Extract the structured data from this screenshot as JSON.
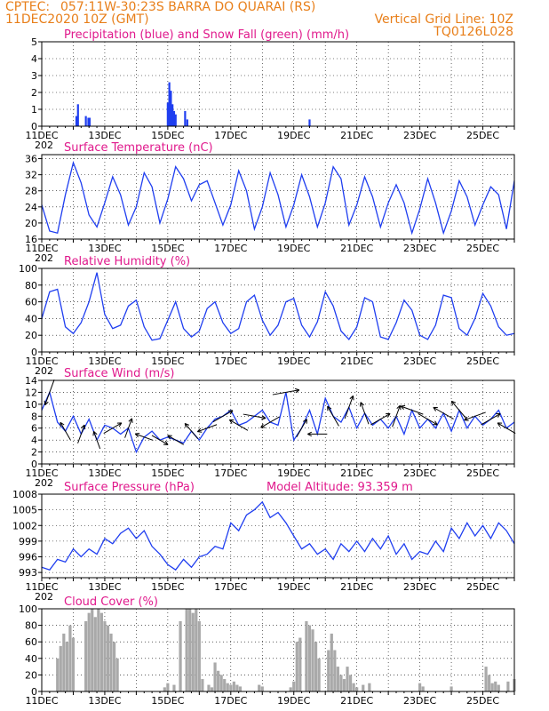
{
  "header": {
    "line1_left": "CPTEC:",
    "location": "057:11W-30:23S  BARRA DO QUARAI (RS)",
    "run_time": "11DEC2020 10Z (GMT)",
    "grid_note": "Vertical Grid Line: 10Z",
    "model_code": "TQ0126L028"
  },
  "x_axis": {
    "tick_labels": [
      "11DEC",
      "13DEC",
      "15DEC",
      "17DEC",
      "19DEC",
      "21DEC",
      "23DEC",
      "25DEC"
    ],
    "tick_days": [
      0,
      2,
      4,
      6,
      8,
      10,
      12,
      14
    ],
    "year_stub": "202",
    "range_days": [
      0,
      15
    ]
  },
  "colors": {
    "header": "#e87f1a",
    "title": "#e0198c",
    "line": "#1f3ef0",
    "precip_bar": "#1f3ef0",
    "snow_bar": "#18a018",
    "cloud_bar": "#a9a9a9",
    "arrow": "#000000"
  },
  "chart_data": [
    {
      "id": "precip",
      "type": "bar",
      "title": "Precipitation (blue) and Snow Fall (green) (mm/h)",
      "ylim": [
        0,
        5
      ],
      "y_ticks": [
        0,
        1,
        2,
        3,
        4,
        5
      ],
      "grid": true,
      "series": [
        {
          "name": "Precipitation",
          "x": [
            1.1,
            1.15,
            1.4,
            1.48,
            1.52,
            4.0,
            4.05,
            4.1,
            4.15,
            4.2,
            4.25,
            4.55,
            4.62,
            8.5
          ],
          "values": [
            0.6,
            1.3,
            0.6,
            0.5,
            0.5,
            1.4,
            2.6,
            2.1,
            1.3,
            0.9,
            0.7,
            0.9,
            0.4,
            0.4
          ]
        },
        {
          "name": "Snow Fall",
          "x": [],
          "values": []
        }
      ]
    },
    {
      "id": "temperature",
      "type": "line",
      "title": "Surface Temperature (nC)",
      "ylim": [
        16,
        37
      ],
      "y_ticks": [
        16,
        20,
        24,
        28,
        32,
        36
      ],
      "grid": true,
      "series": [
        {
          "name": "Surface Temperature",
          "x": [
            0.0,
            0.25,
            0.5,
            0.75,
            1.0,
            1.25,
            1.5,
            1.75,
            2.0,
            2.25,
            2.5,
            2.75,
            3.0,
            3.25,
            3.5,
            3.75,
            4.0,
            4.25,
            4.5,
            4.75,
            5.0,
            5.25,
            5.5,
            5.75,
            6.0,
            6.25,
            6.5,
            6.75,
            7.0,
            7.25,
            7.5,
            7.75,
            8.0,
            8.25,
            8.5,
            8.75,
            9.0,
            9.25,
            9.5,
            9.75,
            10.0,
            10.25,
            10.5,
            10.75,
            11.0,
            11.25,
            11.5,
            11.75,
            12.0,
            12.25,
            12.5,
            12.75,
            13.0,
            13.25,
            13.5,
            13.75,
            14.0,
            14.25,
            14.5,
            14.75,
            15.0
          ],
          "values": [
            24.5,
            18.0,
            17.5,
            27.0,
            35.0,
            30.0,
            22.0,
            19.0,
            25.0,
            31.5,
            27.0,
            19.5,
            24.0,
            32.5,
            29.0,
            20.0,
            26.0,
            34.0,
            31.0,
            25.5,
            29.5,
            30.5,
            25.0,
            19.5,
            24.5,
            33.0,
            28.0,
            18.5,
            24.0,
            32.5,
            27.0,
            19.0,
            24.5,
            32.0,
            26.5,
            19.0,
            25.0,
            34.0,
            31.0,
            19.5,
            24.5,
            31.5,
            26.5,
            19.0,
            25.0,
            29.5,
            25.0,
            17.5,
            23.5,
            31.0,
            25.0,
            17.5,
            23.0,
            30.5,
            26.5,
            19.5,
            24.5,
            29.0,
            27.0,
            18.5,
            30.5
          ]
        }
      ]
    },
    {
      "id": "humidity",
      "type": "line",
      "title": "Relative Humidity (%)",
      "ylim": [
        0,
        100
      ],
      "y_ticks": [
        0,
        20,
        40,
        60,
        80,
        100
      ],
      "grid": true,
      "series": [
        {
          "name": "Relative Humidity",
          "x": [
            0.0,
            0.25,
            0.5,
            0.75,
            1.0,
            1.25,
            1.5,
            1.75,
            2.0,
            2.25,
            2.5,
            2.75,
            3.0,
            3.25,
            3.5,
            3.75,
            4.0,
            4.25,
            4.5,
            4.75,
            5.0,
            5.25,
            5.5,
            5.75,
            6.0,
            6.25,
            6.5,
            6.75,
            7.0,
            7.25,
            7.5,
            7.75,
            8.0,
            8.25,
            8.5,
            8.75,
            9.0,
            9.25,
            9.5,
            9.75,
            10.0,
            10.25,
            10.5,
            10.75,
            11.0,
            11.25,
            11.5,
            11.75,
            12.0,
            12.25,
            12.5,
            12.75,
            13.0,
            13.25,
            13.5,
            13.75,
            14.0,
            14.25,
            14.5,
            14.75,
            15.0
          ],
          "values": [
            40,
            72,
            75,
            30,
            22,
            35,
            60,
            95,
            45,
            28,
            32,
            55,
            62,
            30,
            14,
            16,
            38,
            60,
            28,
            18,
            25,
            52,
            60,
            35,
            22,
            28,
            60,
            68,
            38,
            20,
            32,
            60,
            64,
            32,
            18,
            36,
            72,
            55,
            25,
            15,
            30,
            65,
            60,
            18,
            15,
            35,
            62,
            50,
            20,
            15,
            32,
            68,
            65,
            28,
            20,
            40,
            70,
            55,
            30,
            20,
            22
          ]
        }
      ]
    },
    {
      "id": "wind",
      "type": "line",
      "title": "Surface Wind (m/s)",
      "ylim": [
        0,
        14
      ],
      "y_ticks": [
        0,
        2,
        4,
        6,
        8,
        10,
        12,
        14
      ],
      "grid": true,
      "series": [
        {
          "name": "Surface Wind Speed",
          "x": [
            0.0,
            0.25,
            0.5,
            0.75,
            1.0,
            1.25,
            1.5,
            1.75,
            2.0,
            2.25,
            2.5,
            2.75,
            3.0,
            3.25,
            3.5,
            3.75,
            4.0,
            4.25,
            4.5,
            4.75,
            5.0,
            5.25,
            5.5,
            5.75,
            6.0,
            6.25,
            6.5,
            6.75,
            7.0,
            7.25,
            7.5,
            7.75,
            8.0,
            8.25,
            8.5,
            8.75,
            9.0,
            9.25,
            9.5,
            9.75,
            10.0,
            10.25,
            10.5,
            10.75,
            11.0,
            11.25,
            11.5,
            11.75,
            12.0,
            12.25,
            12.5,
            12.75,
            13.0,
            13.25,
            13.5,
            13.75,
            14.0,
            14.25,
            14.5,
            14.75,
            15.0
          ],
          "values": [
            9.0,
            12.0,
            7.0,
            5.5,
            8.0,
            5.0,
            7.5,
            4.0,
            6.5,
            6.0,
            5.0,
            6.0,
            2.0,
            4.5,
            5.5,
            4.0,
            4.5,
            4.0,
            3.5,
            5.5,
            4.0,
            6.0,
            7.5,
            8.0,
            9.0,
            6.5,
            7.0,
            8.0,
            9.0,
            7.0,
            6.5,
            12.0,
            4.0,
            6.0,
            9.0,
            5.0,
            11.0,
            8.0,
            7.0,
            9.5,
            6.0,
            8.5,
            6.5,
            7.5,
            6.0,
            8.0,
            5.0,
            9.0,
            6.0,
            7.5,
            6.0,
            8.5,
            5.5,
            9.0,
            6.0,
            8.0,
            6.5,
            7.5,
            9.0,
            6.0,
            7.0
          ]
        },
        {
          "name": "Wind Direction",
          "x": [
            0.25,
            0.75,
            1.25,
            1.75,
            2.25,
            2.75,
            3.25,
            3.75,
            4.25,
            4.75,
            5.25,
            5.75,
            6.25,
            6.75,
            7.25,
            7.75,
            8.25,
            8.75,
            9.25,
            9.75,
            10.25,
            10.75,
            11.25,
            11.75,
            12.25,
            12.75,
            13.25,
            13.75,
            14.25,
            14.75
          ],
          "values": [
            200,
            330,
            20,
            340,
            60,
            20,
            290,
            120,
            300,
            320,
            250,
            60,
            300,
            100,
            240,
            80,
            30,
            270,
            330,
            20,
            340,
            60,
            20,
            290,
            120,
            300,
            320,
            250,
            60,
            300
          ]
        }
      ]
    },
    {
      "id": "pressure",
      "type": "line",
      "title": "Surface Pressure (hPa)",
      "annotation": "Model Altitude: 93.359 m",
      "ylim": [
        992,
        1008
      ],
      "y_ticks": [
        993,
        996,
        999,
        1002,
        1005,
        1008
      ],
      "grid": true,
      "series": [
        {
          "name": "Surface Pressure",
          "x": [
            0.0,
            0.25,
            0.5,
            0.75,
            1.0,
            1.25,
            1.5,
            1.75,
            2.0,
            2.25,
            2.5,
            2.75,
            3.0,
            3.25,
            3.5,
            3.75,
            4.0,
            4.25,
            4.5,
            4.75,
            5.0,
            5.25,
            5.5,
            5.75,
            6.0,
            6.25,
            6.5,
            6.75,
            7.0,
            7.25,
            7.5,
            7.75,
            8.0,
            8.25,
            8.5,
            8.75,
            9.0,
            9.25,
            9.5,
            9.75,
            10.0,
            10.25,
            10.5,
            10.75,
            11.0,
            11.25,
            11.5,
            11.75,
            12.0,
            12.25,
            12.5,
            12.75,
            13.0,
            13.25,
            13.5,
            13.75,
            14.0,
            14.25,
            14.5,
            14.75,
            15.0
          ],
          "values": [
            994.0,
            993.5,
            995.5,
            995.0,
            997.5,
            996.0,
            997.5,
            996.5,
            999.5,
            998.5,
            1000.5,
            1001.5,
            999.5,
            1001.0,
            998.0,
            996.5,
            994.5,
            993.5,
            995.5,
            994.0,
            996.0,
            996.5,
            998.0,
            997.5,
            1002.5,
            1001.0,
            1004.0,
            1005.0,
            1006.5,
            1003.5,
            1004.5,
            1002.5,
            1000.0,
            997.5,
            998.5,
            996.5,
            997.5,
            995.5,
            998.5,
            997.0,
            999.0,
            997.0,
            999.5,
            997.5,
            1000.0,
            996.5,
            998.5,
            995.5,
            997.0,
            996.5,
            999.0,
            997.0,
            1001.5,
            999.5,
            1002.5,
            1000.0,
            1002.0,
            999.5,
            1002.5,
            1001.0,
            998.5
          ]
        }
      ]
    },
    {
      "id": "cloud",
      "type": "bar",
      "title": "Cloud Cover (%)",
      "ylim": [
        0,
        100
      ],
      "y_ticks": [
        0,
        20,
        40,
        60,
        80,
        100
      ],
      "grid": true,
      "series": [
        {
          "name": "Cloud Cover",
          "x": [
            0.5,
            0.6,
            0.7,
            0.8,
            0.9,
            1.0,
            1.4,
            1.5,
            1.6,
            1.7,
            1.8,
            1.9,
            2.0,
            2.1,
            2.2,
            2.3,
            2.4,
            3.9,
            4.0,
            4.2,
            4.4,
            4.6,
            4.7,
            4.8,
            4.9,
            5.0,
            5.1,
            5.3,
            5.4,
            5.5,
            5.6,
            5.7,
            5.8,
            5.9,
            6.0,
            6.1,
            6.2,
            6.3,
            6.9,
            7.0,
            7.9,
            8.0,
            8.1,
            8.2,
            8.4,
            8.5,
            8.6,
            8.7,
            8.8,
            9.1,
            9.2,
            9.3,
            9.4,
            9.5,
            9.6,
            9.7,
            9.8,
            9.9,
            10.0,
            10.2,
            10.4,
            12.0,
            12.1,
            13.0,
            14.1,
            14.2,
            14.3,
            14.4,
            14.5,
            14.8,
            15.0
          ],
          "values": [
            40,
            55,
            70,
            60,
            80,
            65,
            85,
            95,
            100,
            90,
            100,
            95,
            85,
            80,
            70,
            60,
            40,
            5,
            10,
            8,
            85,
            100,
            100,
            95,
            100,
            85,
            15,
            8,
            5,
            35,
            25,
            20,
            15,
            10,
            8,
            12,
            8,
            6,
            8,
            6,
            5,
            12,
            60,
            65,
            85,
            80,
            75,
            60,
            40,
            50,
            70,
            50,
            30,
            20,
            15,
            30,
            20,
            10,
            5,
            8,
            10,
            10,
            6,
            6,
            30,
            20,
            10,
            12,
            8,
            12,
            15
          ]
        }
      ]
    }
  ]
}
